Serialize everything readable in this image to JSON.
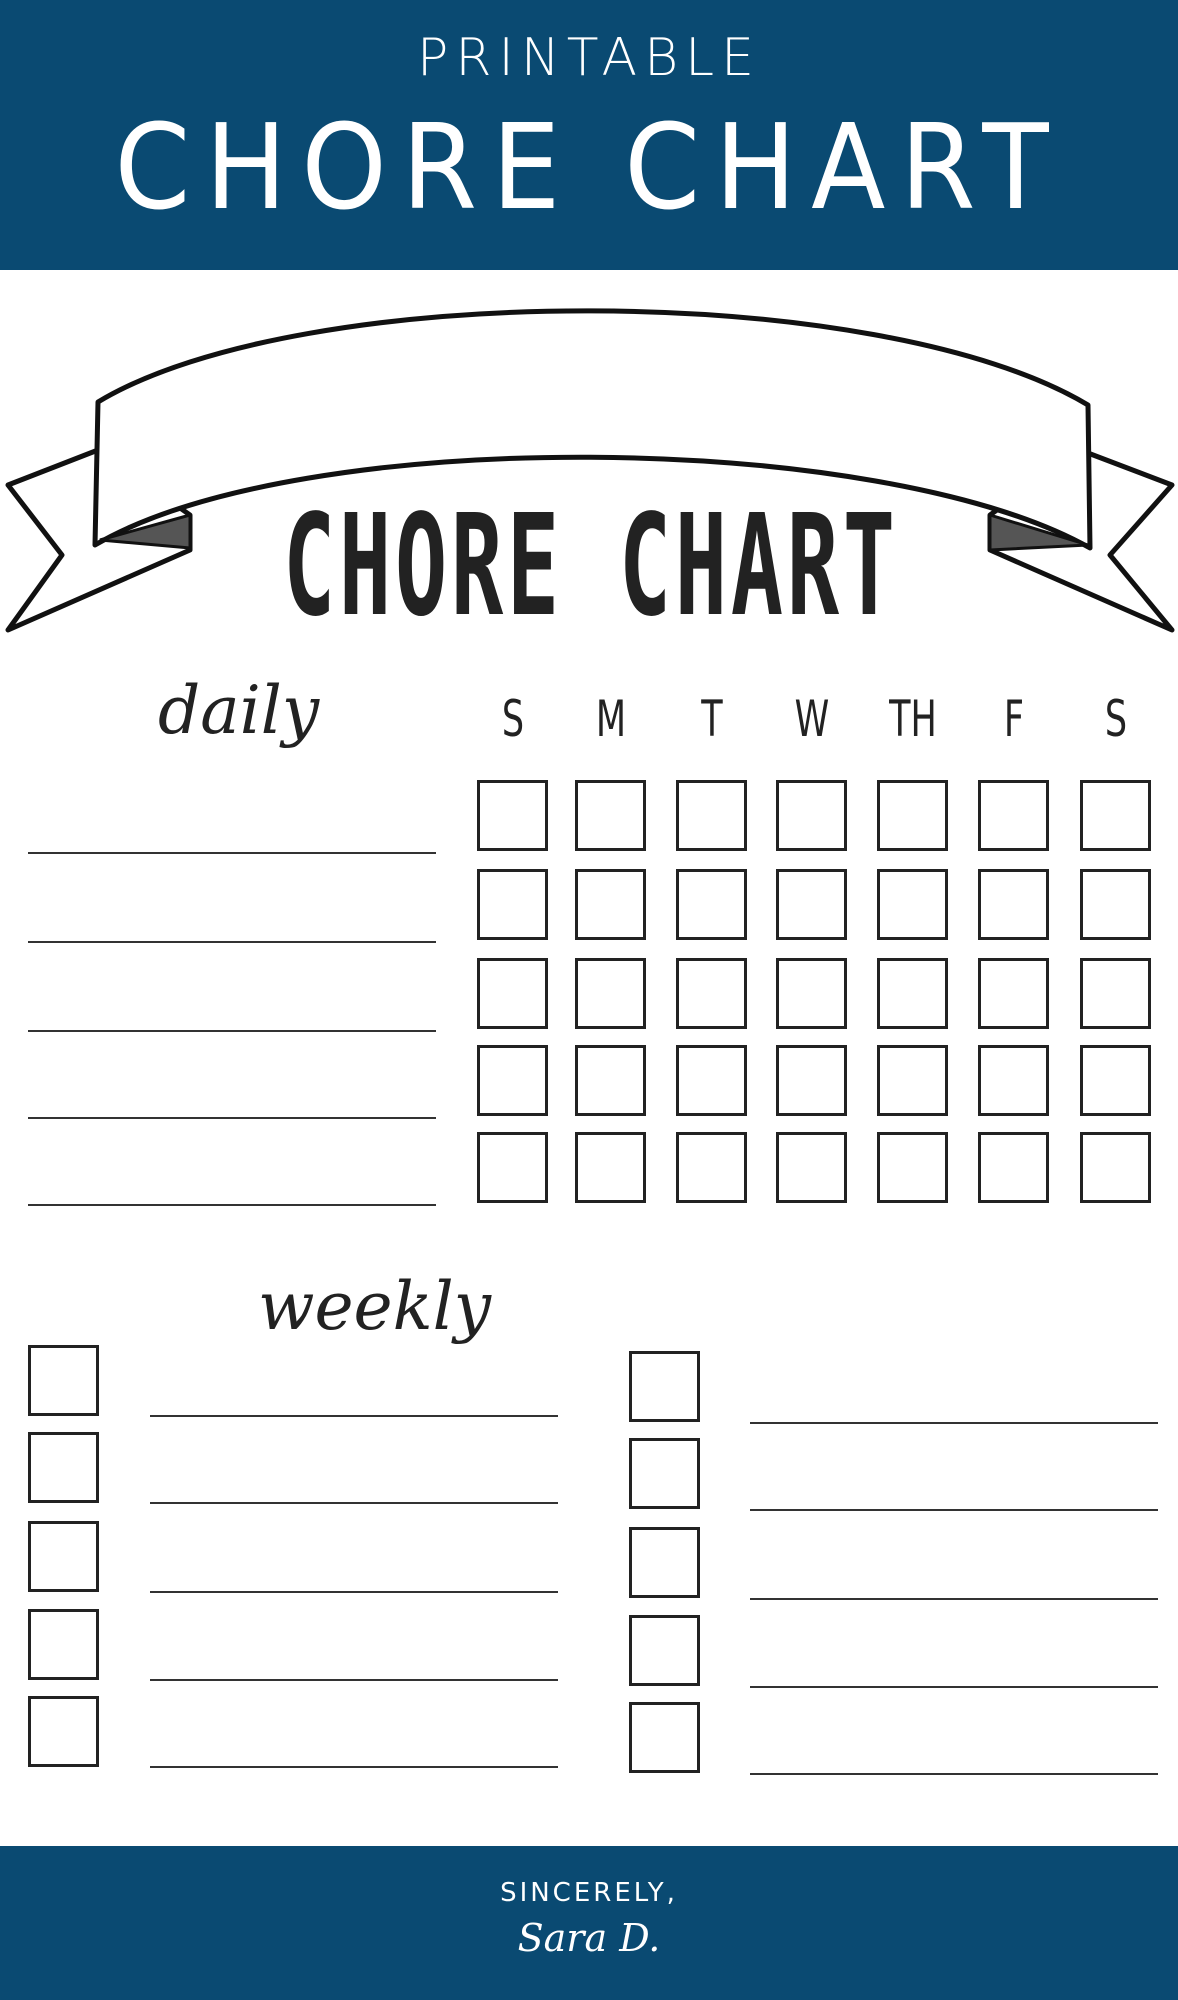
{
  "header": {
    "subtitle": "PRINTABLE",
    "title": "CHORE CHART"
  },
  "chart": {
    "title": "CHORE CHART",
    "daily_label": "daily",
    "weekly_label": "weekly",
    "days": [
      "S",
      "M",
      "T",
      "W",
      "TH",
      "F",
      "S"
    ]
  },
  "footer": {
    "sincerely": "SINCERELY,",
    "signature": "Sara D."
  },
  "colors": {
    "brand": "#0a4a72",
    "ink": "#222222"
  }
}
